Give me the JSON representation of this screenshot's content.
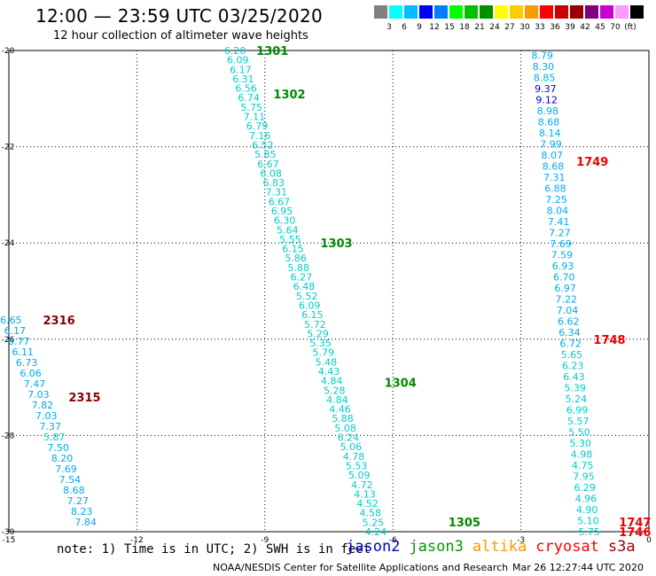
{
  "header": {
    "title": "12:00 — 23:59 UTC 03/25/2020",
    "subtitle": "12 hour collection of altimeter wave heights"
  },
  "color_scale": {
    "swatches": [
      "#808080",
      "#00ffff",
      "#00bfff",
      "#0000ff",
      "#0080ff",
      "#00ff00",
      "#00c000",
      "#009000",
      "#ffff00",
      "#ffcc00",
      "#ff9900",
      "#ff0000",
      "#cc0000",
      "#990000",
      "#800080",
      "#cc00cc",
      "#ff99ff",
      "#000000"
    ],
    "labels": [
      "3",
      "6",
      "9",
      "12",
      "15",
      "18",
      "21",
      "24",
      "27",
      "30",
      "33",
      "36",
      "39",
      "42",
      "45",
      "70",
      "(ft)"
    ]
  },
  "footer": {
    "note": "note: 1) Time is in UTC; 2) SWH is in feet",
    "credit": "NOAA/NESDIS Center for Satellite Applications and Research",
    "timestamp": "Mar 26 12:27:44 UTC 2020"
  },
  "legend": [
    {
      "name": "jason2",
      "color": "#0000cc"
    },
    {
      "name": "jason3",
      "color": "#009900"
    },
    {
      "name": "altika",
      "color": "#ff9900"
    },
    {
      "name": "cryosat",
      "color": "#ff0000"
    },
    {
      "name": "s3a",
      "color": "#990000"
    }
  ],
  "chart_data": {
    "type": "scatter",
    "xlim": [
      -15,
      0
    ],
    "ylim": [
      -30,
      -20
    ],
    "x_ticks": [
      "-15",
      "-12",
      "-9",
      "-6",
      "-3",
      "0"
    ],
    "y_ticks": [
      "-20",
      "-22",
      "-24",
      "-26",
      "-28",
      "-30"
    ],
    "grid": true,
    "colors": {
      "cyan": "#00cccc",
      "lightblue": "#00aaee",
      "blue": "#0000cc",
      "green": "#008800",
      "red": "#ee0000",
      "maroon": "#880000"
    },
    "series": [
      {
        "start": [
          -9.7,
          -20.0
        ],
        "end": [
          -6.4,
          -30.0
        ],
        "values": [
          "6.20",
          "6.09",
          "6.17",
          "6.31",
          "6.56",
          "6.74",
          "5.75",
          "7.11",
          "6.79",
          "7.16",
          "6.52",
          "5.85",
          "6.67",
          "6.08",
          "6.83",
          "7.31",
          "6.67",
          "6.95",
          "6.30",
          "5.64",
          "5.55",
          "6.15",
          "5.86",
          "5.88",
          "6.27",
          "6.48",
          "5.52",
          "6.09",
          "6.15",
          "5.72",
          "5.29",
          "5.35",
          "5.79",
          "5.48",
          "4.43",
          "4.84",
          "5.28",
          "4.84",
          "4.46",
          "5.88",
          "5.08",
          "6.24",
          "5.06",
          "4.78",
          "5.53",
          "5.09",
          "4.72",
          "4.13",
          "4.52",
          "4.58",
          "5.25",
          "4.24"
        ],
        "value_colors": [
          "cyan",
          "cyan",
          "cyan",
          "cyan",
          "cyan",
          "cyan",
          "cyan",
          "cyan",
          "cyan",
          "cyan",
          "cyan",
          "cyan",
          "cyan",
          "cyan",
          "cyan",
          "cyan",
          "cyan",
          "cyan",
          "cyan",
          "cyan",
          "cyan",
          "cyan",
          "cyan",
          "cyan",
          "cyan",
          "cyan",
          "cyan",
          "cyan",
          "cyan",
          "cyan",
          "cyan",
          "cyan",
          "cyan",
          "cyan",
          "cyan",
          "cyan",
          "cyan",
          "cyan",
          "cyan",
          "cyan",
          "cyan",
          "cyan",
          "cyan",
          "cyan",
          "cyan",
          "cyan",
          "cyan",
          "cyan",
          "cyan",
          "cyan",
          "cyan",
          "cyan"
        ],
        "labels": [
          {
            "text": "1301",
            "x": -9.2,
            "y": -20.0,
            "color": "green"
          },
          {
            "text": "1302",
            "x": -8.8,
            "y": -20.9,
            "color": "green"
          },
          {
            "text": "1303",
            "x": -7.7,
            "y": -24.0,
            "color": "green"
          },
          {
            "text": "1304",
            "x": -6.2,
            "y": -26.9,
            "color": "green"
          },
          {
            "text": "1305",
            "x": -4.7,
            "y": -29.8,
            "color": "green"
          }
        ]
      },
      {
        "start": [
          -2.5,
          -20.1
        ],
        "end": [
          -1.4,
          -30.0
        ],
        "values": [
          "8.79",
          "8.30",
          "8.85",
          "9.37",
          "9.12",
          "8.98",
          "8.68",
          "8.14",
          "7.99",
          "8.07",
          "8.68",
          "7.31",
          "6.88",
          "7.25",
          "8.04",
          "7.41",
          "7.27",
          "7.69",
          "7.59",
          "6.93",
          "6.70",
          "6.97",
          "7.22",
          "7.04",
          "6.62",
          "6.34",
          "6.72",
          "5.65",
          "6.23",
          "6.43",
          "5.39",
          "5.24",
          "6.99",
          "5.57",
          "5.50",
          "5.30",
          "4.98",
          "4.75",
          "7.95",
          "6.29",
          "4.96",
          "4.90",
          "5.10",
          "5.75"
        ],
        "value_colors": [
          "lightblue",
          "lightblue",
          "lightblue",
          "blue",
          "blue",
          "lightblue",
          "lightblue",
          "lightblue",
          "lightblue",
          "lightblue",
          "lightblue",
          "lightblue",
          "lightblue",
          "lightblue",
          "lightblue",
          "lightblue",
          "lightblue",
          "lightblue",
          "lightblue",
          "lightblue",
          "lightblue",
          "lightblue",
          "lightblue",
          "lightblue",
          "lightblue",
          "lightblue",
          "lightblue",
          "cyan",
          "cyan",
          "cyan",
          "cyan",
          "cyan",
          "cyan",
          "cyan",
          "cyan",
          "cyan",
          "cyan",
          "cyan",
          "cyan",
          "cyan",
          "cyan",
          "cyan",
          "cyan",
          "cyan"
        ],
        "labels": [
          {
            "text": "1749",
            "x": -1.7,
            "y": -22.3,
            "color": "red"
          },
          {
            "text": "1748",
            "x": -1.3,
            "y": -26.0,
            "color": "red"
          },
          {
            "text": "1747",
            "x": -0.7,
            "y": -29.8,
            "color": "red"
          },
          {
            "text": "1746",
            "x": -0.7,
            "y": -30.0,
            "color": "red"
          }
        ]
      },
      {
        "start": [
          -14.95,
          -25.6
        ],
        "end": [
          -13.2,
          -29.8
        ],
        "values": [
          "6.65",
          "6.17",
          "6.77",
          "6.11",
          "6.73",
          "6.06",
          "7.47",
          "7.03",
          "7.82",
          "7.03",
          "7.37",
          "5.87",
          "7.50",
          "8.20",
          "7.69",
          "7.54",
          "8.68",
          "7.27",
          "8.23",
          "7.84"
        ],
        "value_colors": [
          "lightblue",
          "lightblue",
          "lightblue",
          "lightblue",
          "lightblue",
          "lightblue",
          "lightblue",
          "lightblue",
          "lightblue",
          "lightblue",
          "lightblue",
          "cyan",
          "lightblue",
          "lightblue",
          "lightblue",
          "lightblue",
          "lightblue",
          "lightblue",
          "lightblue",
          "lightblue"
        ],
        "labels": [
          {
            "text": "2316",
            "x": -14.2,
            "y": -25.6,
            "color": "maroon"
          },
          {
            "text": "2315",
            "x": -13.6,
            "y": -27.2,
            "color": "maroon"
          }
        ]
      }
    ]
  }
}
